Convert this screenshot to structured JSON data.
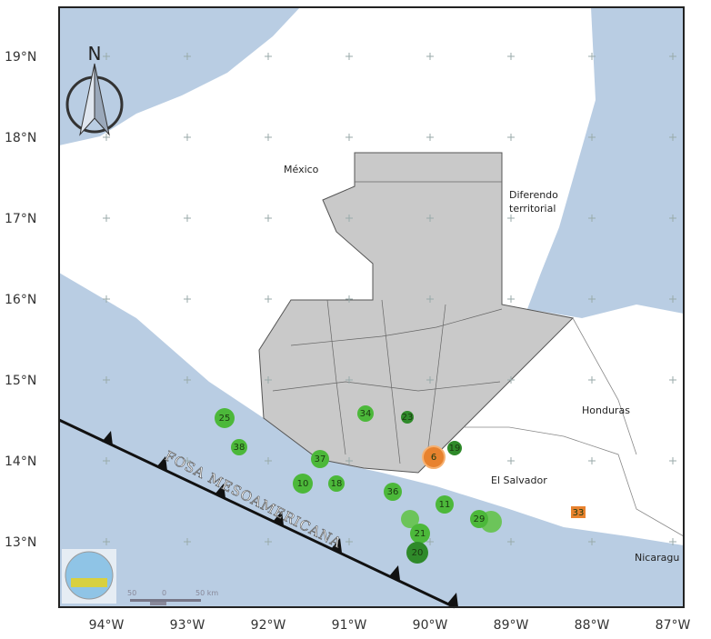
{
  "north_arrow": {
    "label": "N"
  },
  "lat_labels": [
    "19°N",
    "18°N",
    "17°N",
    "16°N",
    "15°N",
    "14°N",
    "13°N"
  ],
  "lon_labels": [
    "94°W",
    "93°W",
    "92°W",
    "91°W",
    "90°W",
    "89°W",
    "88°W",
    "87°W"
  ],
  "places": {
    "mexico": "México",
    "diferendo_1": "Diferendo",
    "diferendo_2": "territorial",
    "honduras": "Honduras",
    "el_salvador": "El Salvador",
    "nicaragua": "Nicaragu"
  },
  "trench_label": "FOSA MESOAMERICANA",
  "scale_bar": {
    "left": "50",
    "mid": "0",
    "right": "50 km"
  },
  "colors": {
    "ocean": "#b9cde3",
    "guatemala": "#c9c9c9",
    "marker_green": "#4cb83a",
    "marker_dark": "#2f8a2a",
    "marker_orange": "#e8822e"
  },
  "markers": [
    {
      "label": "25",
      "type": "green"
    },
    {
      "label": "38",
      "type": "green"
    },
    {
      "label": "34",
      "type": "green"
    },
    {
      "label": "23",
      "type": "dark"
    },
    {
      "label": "37",
      "type": "green"
    },
    {
      "label": "10",
      "type": "green"
    },
    {
      "label": "18",
      "type": "green"
    },
    {
      "label": "6",
      "type": "orange"
    },
    {
      "label": "19",
      "type": "dark"
    },
    {
      "label": "36",
      "type": "green"
    },
    {
      "label": "11",
      "type": "green"
    },
    {
      "label": "21",
      "type": "green"
    },
    {
      "label": "20",
      "type": "dark"
    },
    {
      "label": "29",
      "type": "green"
    },
    {
      "label": "33",
      "type": "orange-square"
    }
  ]
}
